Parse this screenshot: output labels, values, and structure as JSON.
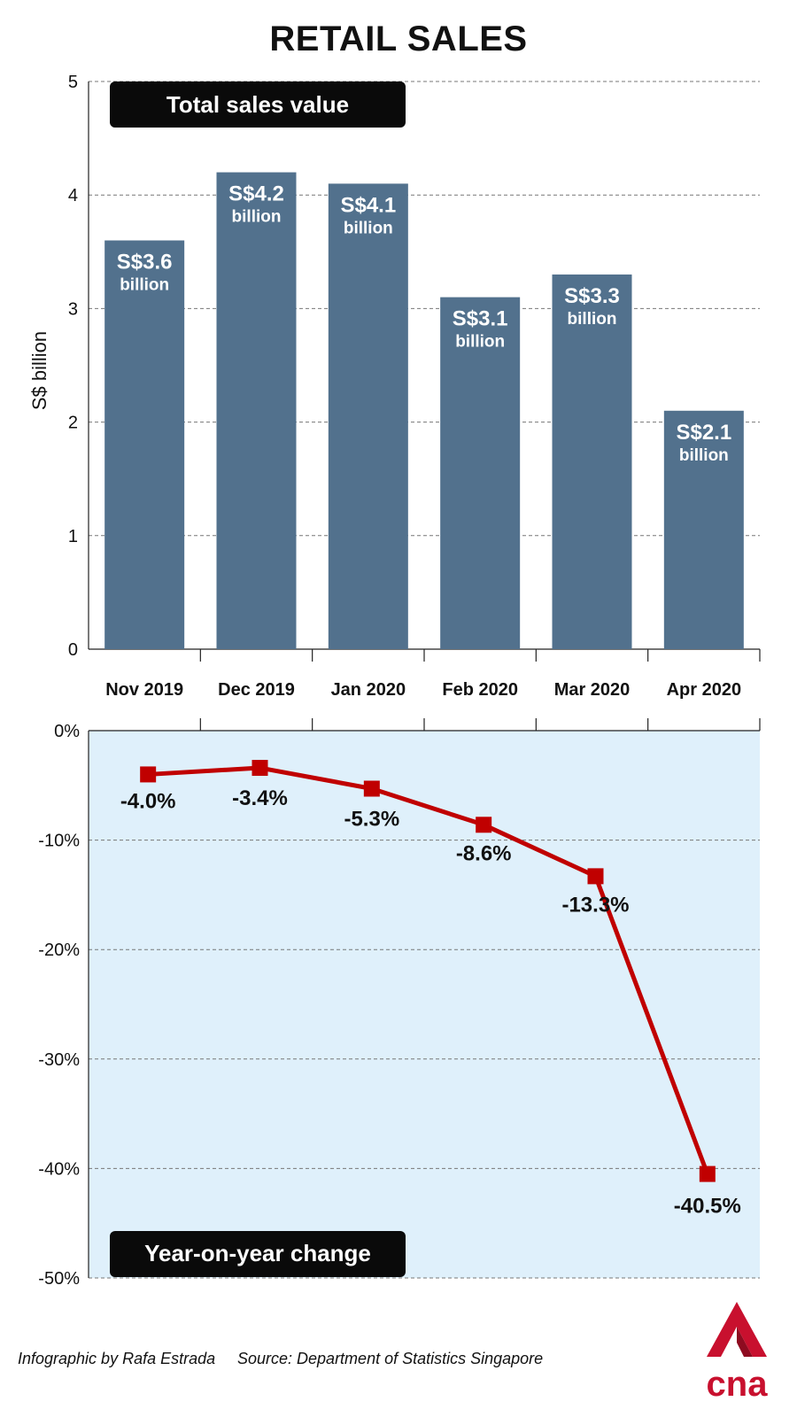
{
  "title": "RETAIL SALES",
  "credits": {
    "by": "Infographic by Rafa Estrada",
    "source": "Source: Department of Statistics Singapore"
  },
  "logo": {
    "text": "cna",
    "color": "#c8102e"
  },
  "colors": {
    "bar": "#52718d",
    "line": "#c00000",
    "panel_bg": "#dff0fb",
    "tag_bg": "#0a0a0a"
  },
  "chart_data": [
    {
      "type": "bar",
      "title": "Total sales value",
      "ylabel": "S$ billion",
      "ylim": [
        0,
        5
      ],
      "yticks": [
        0,
        1,
        2,
        3,
        4,
        5
      ],
      "categories": [
        "Nov 2019",
        "Dec 2019",
        "Jan 2020",
        "Feb 2020",
        "Mar 2020",
        "Apr 2020"
      ],
      "values": [
        3.6,
        4.2,
        4.1,
        3.1,
        3.3,
        2.1
      ],
      "value_labels": [
        "S$3.6",
        "S$4.2",
        "S$4.1",
        "S$3.1",
        "S$3.3",
        "S$2.1"
      ],
      "unit_label": "billion",
      "grid": true
    },
    {
      "type": "line",
      "title": "Year-on-year change",
      "ylim": [
        -50,
        0
      ],
      "yticks": [
        0,
        -10,
        -20,
        -30,
        -40,
        -50
      ],
      "ytick_labels": [
        "0%",
        "-10%",
        "-20%",
        "-30%",
        "-40%",
        "-50%"
      ],
      "categories": [
        "Nov 2019",
        "Dec 2019",
        "Jan 2020",
        "Feb 2020",
        "Mar 2020",
        "Apr 2020"
      ],
      "values": [
        -4.0,
        -3.4,
        -5.3,
        -8.6,
        -13.3,
        -40.5
      ],
      "value_labels": [
        "-4.0%",
        "-3.4%",
        "-5.3%",
        "-8.6%",
        "-13.3%",
        "-40.5%"
      ],
      "grid": true
    }
  ]
}
